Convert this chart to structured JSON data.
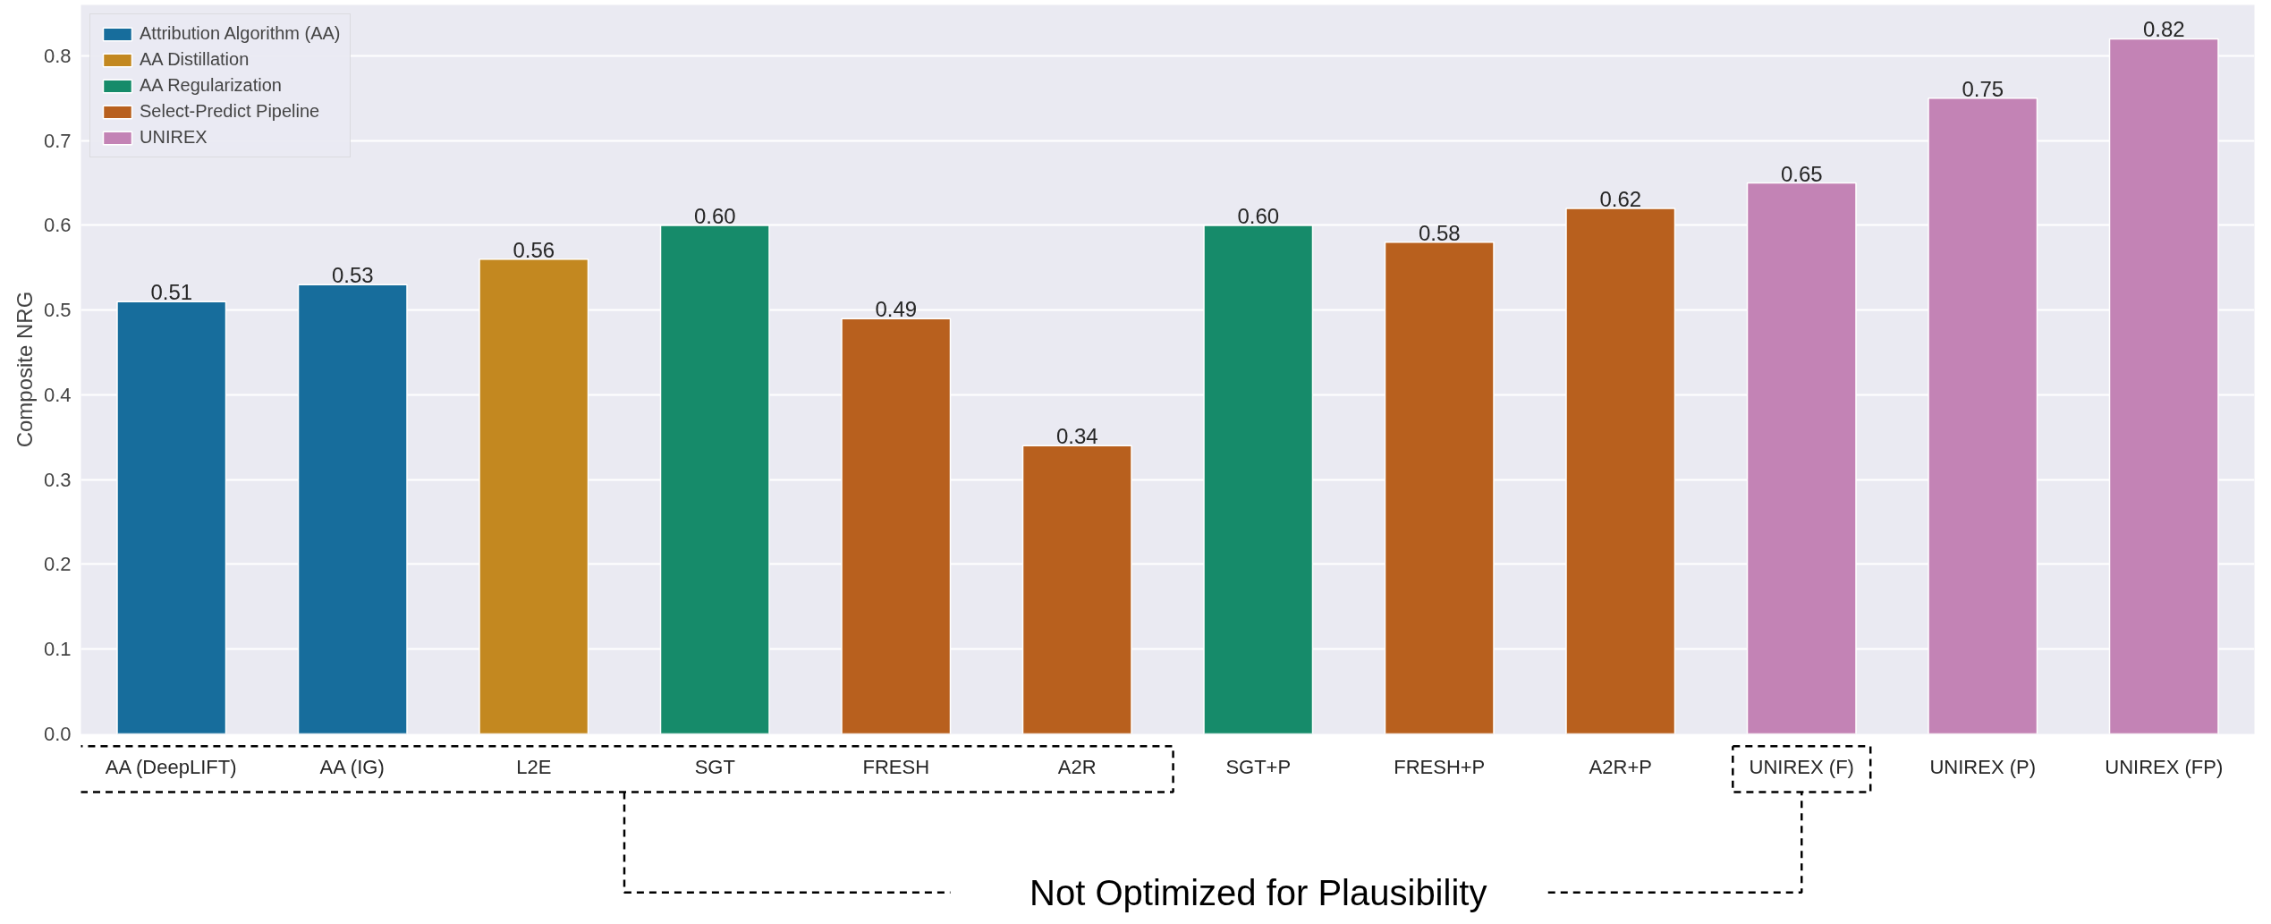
{
  "chart_data": {
    "type": "bar",
    "ylabel": "Composite NRG",
    "categories": [
      "AA (DeepLIFT)",
      "AA (IG)",
      "L2E",
      "SGT",
      "FRESH",
      "A2R",
      "SGT+P",
      "FRESH+P",
      "A2R+P",
      "UNIREX (F)",
      "UNIREX (P)",
      "UNIREX (FP)"
    ],
    "series": [
      {
        "name": "Attribution Algorithm (AA)",
        "color": "#176d9c",
        "values": [
          0.51,
          0.53,
          null,
          null,
          null,
          null,
          null,
          null,
          null,
          null,
          null,
          null
        ],
        "value_labels": [
          "0.51",
          "0.53",
          null,
          null,
          null,
          null,
          null,
          null,
          null,
          null,
          null,
          null
        ]
      },
      {
        "name": "AA Distillation",
        "color": "#c38820",
        "values": [
          null,
          null,
          0.56,
          null,
          null,
          null,
          null,
          null,
          null,
          null,
          null,
          null
        ],
        "value_labels": [
          null,
          null,
          "0.56",
          null,
          null,
          null,
          null,
          null,
          null,
          null,
          null,
          null
        ]
      },
      {
        "name": "AA Regularization",
        "color": "#168b6a",
        "values": [
          null,
          null,
          null,
          0.6,
          null,
          null,
          0.6,
          null,
          null,
          null,
          null,
          null
        ],
        "value_labels": [
          null,
          null,
          null,
          "0.60",
          null,
          null,
          "0.60",
          null,
          null,
          null,
          null,
          null
        ]
      },
      {
        "name": "Select-Predict Pipeline",
        "color": "#b8601e",
        "values": [
          null,
          null,
          null,
          null,
          0.49,
          0.34,
          null,
          0.58,
          0.62,
          null,
          null,
          null
        ],
        "value_labels": [
          null,
          null,
          null,
          null,
          "0.49",
          "0.34",
          null,
          "0.58",
          "0.62",
          null,
          null,
          null
        ]
      },
      {
        "name": "UNIREX",
        "color": "#c383b5",
        "values": [
          null,
          null,
          null,
          null,
          null,
          null,
          null,
          null,
          null,
          0.65,
          0.75,
          0.82
        ],
        "value_labels": [
          null,
          null,
          null,
          null,
          null,
          null,
          null,
          null,
          null,
          "0.65",
          "0.75",
          "0.82"
        ]
      }
    ],
    "ylim": [
      0,
      0.86
    ],
    "yticks": [
      {
        "value": 0,
        "label": "0.0"
      },
      0.1,
      0.2,
      0.3,
      0.4,
      0.5,
      0.6,
      0.7,
      0.8
    ],
    "grid": "y",
    "legend": "top left",
    "annotations": [
      "Not Optimized for Plausibility"
    ]
  }
}
